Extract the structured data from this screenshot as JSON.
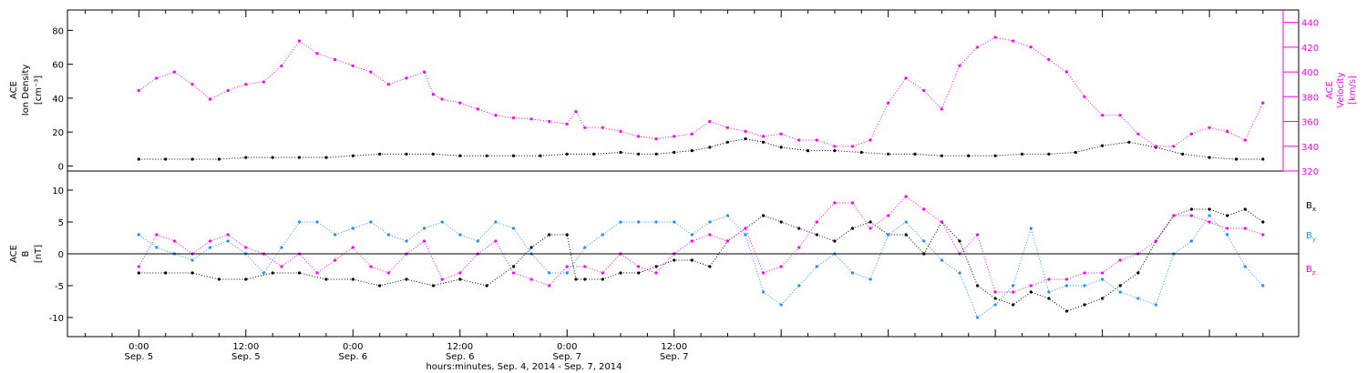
{
  "chart_data": [
    {
      "type": "scatter",
      "panel": "top",
      "ylabel_left": [
        "ACE",
        "Ion Density",
        "[cm⁻³]"
      ],
      "ylabel_right": [
        "ACE",
        "Velocity",
        "[km/s]"
      ],
      "ylim_left": [
        -3,
        92
      ],
      "yticks_left": [
        0,
        20,
        40,
        60,
        80
      ],
      "ylim_right": [
        320,
        450
      ],
      "yticks_right": [
        320,
        340,
        360,
        380,
        400,
        420,
        440
      ],
      "series": [
        {
          "color": "#000000",
          "axis": "left",
          "x": [
            0,
            3,
            6,
            9,
            12,
            15,
            18,
            21,
            24,
            27,
            30,
            33,
            36,
            39,
            42,
            45,
            48,
            51,
            54,
            56,
            58,
            60,
            62,
            64,
            66,
            68,
            70,
            72,
            75,
            78,
            81,
            84,
            87,
            90,
            93,
            96,
            99,
            102,
            105,
            108,
            111,
            114,
            117,
            120,
            123,
            126
          ],
          "y": [
            4,
            4,
            4,
            4,
            5,
            5,
            5,
            5,
            6,
            7,
            7,
            7,
            6,
            6,
            6,
            6,
            7,
            7,
            8,
            7,
            7,
            8,
            9,
            11,
            14,
            16,
            14,
            11,
            9,
            9,
            8,
            7,
            7,
            6,
            6,
            6,
            7,
            7,
            8,
            12,
            14,
            11,
            7,
            5,
            4,
            4
          ]
        },
        {
          "color": "#ff00ff",
          "axis": "right",
          "x": [
            0,
            2,
            4,
            6,
            8,
            10,
            12,
            14,
            16,
            18,
            20,
            22,
            24,
            26,
            28,
            30,
            32,
            33,
            34,
            36,
            38,
            40,
            42,
            44,
            46,
            48,
            49,
            50,
            52,
            54,
            56,
            58,
            60,
            62,
            64,
            66,
            68,
            70,
            72,
            74,
            76,
            78,
            80,
            82,
            84,
            86,
            88,
            90,
            92,
            94,
            96,
            98,
            100,
            102,
            104,
            106,
            108,
            110,
            112,
            114,
            116,
            118,
            120,
            122,
            124,
            126
          ],
          "y": [
            385,
            395,
            400,
            390,
            378,
            385,
            390,
            392,
            405,
            425,
            415,
            410,
            405,
            400,
            390,
            395,
            400,
            382,
            378,
            375,
            370,
            365,
            363,
            362,
            360,
            358,
            368,
            355,
            355,
            352,
            348,
            346,
            348,
            350,
            360,
            355,
            352,
            348,
            350,
            345,
            345,
            340,
            340,
            345,
            375,
            395,
            385,
            370,
            405,
            420,
            428,
            425,
            420,
            410,
            400,
            380,
            365,
            365,
            350,
            340,
            340,
            350,
            355,
            352,
            345,
            375
          ]
        }
      ]
    },
    {
      "type": "scatter",
      "panel": "bottom",
      "ylabel_left": [
        "ACE",
        "B",
        "[nT]"
      ],
      "ylim": [
        -13,
        13
      ],
      "yticks": [
        -10,
        -5,
        0,
        5,
        10
      ],
      "zero_line": true,
      "legend": [
        "B",
        "B",
        "B"
      ],
      "legend_subscripts": [
        "x",
        "y",
        "z"
      ],
      "legend_placement": "right",
      "series": [
        {
          "name": "B",
          "color": "#000000",
          "x": [
            0,
            3,
            6,
            9,
            12,
            15,
            18,
            21,
            24,
            27,
            30,
            33,
            36,
            39,
            42,
            44,
            46,
            48,
            49,
            50,
            52,
            54,
            56,
            58,
            60,
            62,
            64,
            66,
            68,
            70,
            72,
            74,
            76,
            78,
            80,
            82,
            84,
            86,
            88,
            90,
            92,
            94,
            96,
            98,
            100,
            102,
            104,
            106,
            108,
            110,
            112,
            114,
            116,
            118,
            120,
            122,
            124,
            126
          ],
          "y": [
            -3,
            -3,
            -3,
            -4,
            -4,
            -3,
            -3,
            -4,
            -4,
            -5,
            -4,
            -5,
            -4,
            -5,
            -2,
            1,
            3,
            3,
            -4,
            -4,
            -4,
            -3,
            -3,
            -2,
            -1,
            -1,
            -2,
            2,
            4,
            6,
            5,
            4,
            3,
            2,
            4,
            5,
            3,
            3,
            0,
            5,
            2,
            -5,
            -7,
            -8,
            -6,
            -7,
            -9,
            -8,
            -7,
            -5,
            -3,
            2,
            6,
            7,
            7,
            6,
            7,
            5
          ]
        },
        {
          "name": "B",
          "color": "#1e90ff",
          "x": [
            0,
            2,
            4,
            6,
            8,
            10,
            12,
            14,
            16,
            18,
            20,
            22,
            24,
            26,
            28,
            30,
            32,
            34,
            36,
            38,
            40,
            42,
            44,
            46,
            48,
            50,
            52,
            54,
            56,
            58,
            60,
            62,
            64,
            66,
            68,
            70,
            72,
            74,
            76,
            78,
            80,
            82,
            84,
            86,
            88,
            90,
            92,
            94,
            96,
            98,
            100,
            102,
            104,
            106,
            108,
            110,
            112,
            114,
            116,
            118,
            120,
            122,
            124,
            126
          ],
          "y": [
            3,
            1,
            0,
            -1,
            1,
            2,
            0,
            -3,
            1,
            5,
            5,
            3,
            4,
            5,
            3,
            2,
            4,
            5,
            3,
            2,
            5,
            4,
            0,
            -3,
            -3,
            1,
            3,
            5,
            5,
            5,
            5,
            3,
            5,
            6,
            3,
            -6,
            -8,
            -5,
            -2,
            0,
            -3,
            -4,
            3,
            5,
            2,
            -1,
            -3,
            -10,
            -8,
            -5,
            4,
            -6,
            -5,
            -5,
            -4,
            -6,
            -7,
            -8,
            0,
            2,
            6,
            3,
            -2,
            -5
          ]
        },
        {
          "name": "B",
          "color": "#ff00ff",
          "x": [
            0,
            2,
            4,
            6,
            8,
            10,
            12,
            14,
            16,
            18,
            20,
            22,
            24,
            26,
            28,
            30,
            32,
            34,
            36,
            38,
            40,
            42,
            44,
            46,
            48,
            50,
            52,
            54,
            56,
            58,
            60,
            62,
            64,
            66,
            68,
            70,
            72,
            74,
            76,
            78,
            80,
            82,
            84,
            86,
            88,
            90,
            92,
            94,
            96,
            98,
            100,
            102,
            104,
            106,
            108,
            110,
            112,
            114,
            116,
            118,
            120,
            122,
            124,
            126
          ],
          "y": [
            -2,
            3,
            2,
            0,
            2,
            3,
            1,
            0,
            -2,
            0,
            -3,
            -1,
            1,
            -2,
            -3,
            0,
            2,
            -4,
            -3,
            0,
            2,
            -3,
            -4,
            -5,
            -2,
            -2,
            -3,
            0,
            -2,
            -3,
            0,
            2,
            3,
            2,
            4,
            -3,
            -2,
            1,
            5,
            8,
            8,
            4,
            6,
            9,
            7,
            5,
            0,
            3,
            -6,
            -6,
            -5,
            -4,
            -4,
            -3,
            -3,
            -1,
            0,
            2,
            6,
            6,
            5,
            4,
            4,
            3
          ]
        }
      ]
    }
  ],
  "xaxis": {
    "xlim": [
      -8,
      130
    ],
    "ticks": [
      {
        "x": 0,
        "time": "0:00",
        "date": "Sep. 5"
      },
      {
        "x": 12,
        "time": "12:00",
        "date": "Sep. 5"
      },
      {
        "x": 24,
        "time": "0:00",
        "date": "Sep. 6"
      },
      {
        "x": 36,
        "time": "12:00",
        "date": "Sep. 6"
      },
      {
        "x": 48,
        "time": "0:00",
        "date": "Sep. 7"
      },
      {
        "x": 60,
        "time": "12:00",
        "date": "Sep. 7"
      }
    ],
    "xlabel": "hours:minutes, Sep.  4, 2014 - Sep.  7, 2014"
  }
}
